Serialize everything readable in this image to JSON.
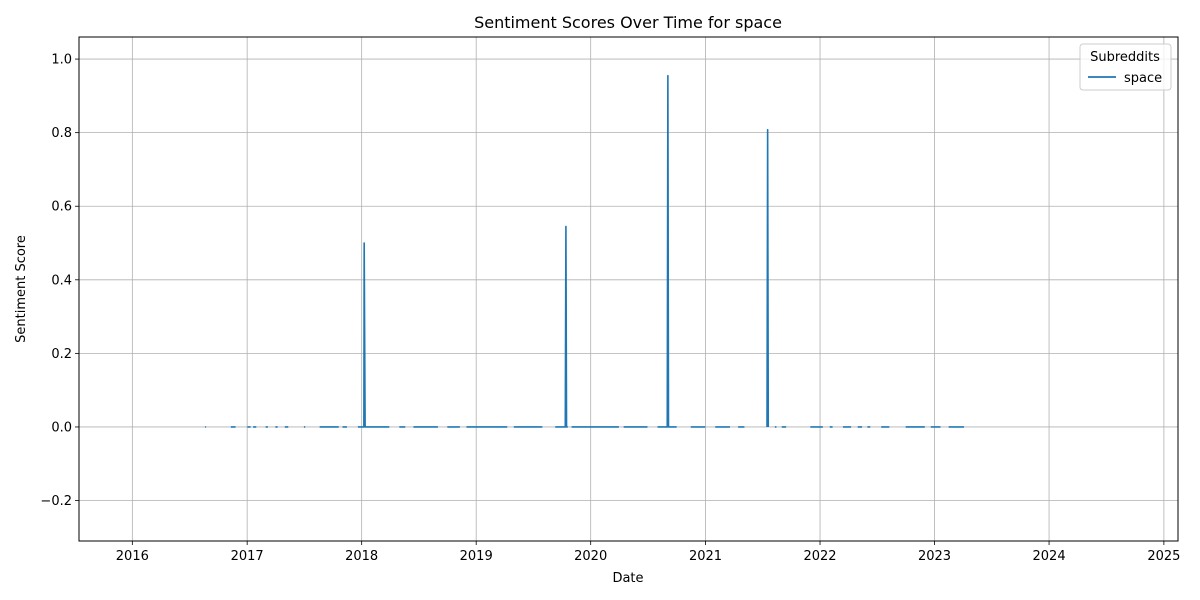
{
  "chart_data": {
    "type": "line",
    "title": "Sentiment Scores Over Time for space",
    "xlabel": "Date",
    "ylabel": "Sentiment Score",
    "xlim": [
      "2015-07-15",
      "2025-02-15"
    ],
    "ylim": [
      -0.31,
      1.06
    ],
    "x_ticks": [
      "2016",
      "2017",
      "2018",
      "2019",
      "2020",
      "2021",
      "2022",
      "2023",
      "2024",
      "2025"
    ],
    "y_ticks": [
      -0.2,
      0.0,
      0.2,
      0.4,
      0.6,
      0.8,
      1.0
    ],
    "y_tick_labels": [
      "−0.2",
      "0.0",
      "0.2",
      "0.4",
      "0.6",
      "0.8",
      "1.0"
    ],
    "grid": true,
    "legend": {
      "title": "Subreddits",
      "placement": "top-right"
    },
    "series": [
      {
        "name": "space",
        "color": "#1f77b4",
        "segments": [
          [
            [
              "2016-08-20",
              0.0
            ],
            [
              "2016-08-23",
              0.0
            ]
          ],
          [
            [
              "2016-11-10",
              0.0
            ],
            [
              "2016-11-25",
              0.0
            ]
          ],
          [
            [
              "2017-01-02",
              0.0
            ],
            [
              "2017-01-12",
              0.0
            ]
          ],
          [
            [
              "2017-01-20",
              0.0
            ],
            [
              "2017-01-30",
              0.0
            ]
          ],
          [
            [
              "2017-03-01",
              0.0
            ],
            [
              "2017-03-08",
              0.0
            ]
          ],
          [
            [
              "2017-04-01",
              0.0
            ],
            [
              "2017-04-08",
              0.0
            ]
          ],
          [
            [
              "2017-05-01",
              0.0
            ],
            [
              "2017-05-12",
              0.0
            ]
          ],
          [
            [
              "2017-07-01",
              0.0
            ],
            [
              "2017-07-05",
              0.0
            ]
          ],
          [
            [
              "2017-08-20",
              0.0
            ],
            [
              "2017-10-20",
              0.0
            ]
          ],
          [
            [
              "2017-11-01",
              0.0
            ],
            [
              "2017-11-15",
              0.0
            ]
          ],
          [
            [
              "2017-12-20",
              0.0
            ],
            [
              "2018-01-08",
              0.0
            ],
            [
              "2018-01-09",
              0.5
            ],
            [
              "2018-01-12",
              0.0
            ],
            [
              "2018-03-30",
              0.0
            ]
          ],
          [
            [
              "2018-05-01",
              0.0
            ],
            [
              "2018-05-20",
              0.0
            ]
          ],
          [
            [
              "2018-06-15",
              0.0
            ],
            [
              "2018-09-01",
              0.0
            ]
          ],
          [
            [
              "2018-10-01",
              0.0
            ],
            [
              "2018-11-10",
              0.0
            ]
          ],
          [
            [
              "2018-12-01",
              0.0
            ],
            [
              "2019-04-10",
              0.0
            ]
          ],
          [
            [
              "2019-05-01",
              0.0
            ],
            [
              "2019-07-31",
              0.0
            ]
          ],
          [
            [
              "2019-09-10",
              0.0
            ],
            [
              "2019-10-12",
              0.0
            ],
            [
              "2019-10-14",
              0.545
            ],
            [
              "2019-10-16",
              0.0
            ],
            [
              "2019-10-20",
              0.0
            ]
          ],
          [
            [
              "2019-11-01",
              0.0
            ],
            [
              "2020-03-31",
              0.0
            ]
          ],
          [
            [
              "2020-04-15",
              0.0
            ],
            [
              "2020-06-30",
              0.0
            ]
          ],
          [
            [
              "2020-08-01",
              0.0
            ],
            [
              "2020-09-01",
              0.0
            ],
            [
              "2020-09-03",
              0.955
            ],
            [
              "2020-09-05",
              0.0
            ],
            [
              "2020-10-01",
              0.0
            ]
          ],
          [
            [
              "2020-11-15",
              0.0
            ],
            [
              "2020-12-31",
              0.0
            ]
          ],
          [
            [
              "2021-02-01",
              0.0
            ],
            [
              "2021-03-20",
              0.0
            ]
          ],
          [
            [
              "2021-04-15",
              0.0
            ],
            [
              "2021-05-05",
              0.0
            ]
          ],
          [
            [
              "2021-07-16",
              0.0
            ],
            [
              "2021-07-18",
              0.808
            ],
            [
              "2021-07-20",
              0.0
            ]
          ],
          [
            [
              "2021-08-10",
              0.0
            ],
            [
              "2021-08-15",
              0.0
            ]
          ],
          [
            [
              "2021-09-01",
              0.0
            ],
            [
              "2021-09-15",
              0.0
            ]
          ],
          [
            [
              "2021-12-01",
              0.0
            ],
            [
              "2022-01-10",
              0.0
            ]
          ],
          [
            [
              "2022-02-01",
              0.0
            ],
            [
              "2022-02-10",
              0.0
            ]
          ],
          [
            [
              "2022-03-15",
              0.0
            ],
            [
              "2022-04-10",
              0.0
            ]
          ],
          [
            [
              "2022-05-01",
              0.0
            ],
            [
              "2022-05-15",
              0.0
            ]
          ],
          [
            [
              "2022-06-01",
              0.0
            ],
            [
              "2022-06-10",
              0.0
            ]
          ],
          [
            [
              "2022-07-15",
              0.0
            ],
            [
              "2022-08-10",
              0.0
            ]
          ],
          [
            [
              "2022-10-01",
              0.0
            ],
            [
              "2022-12-01",
              0.0
            ]
          ],
          [
            [
              "2022-12-20",
              0.0
            ],
            [
              "2023-01-20",
              0.0
            ]
          ],
          [
            [
              "2023-02-15",
              0.0
            ],
            [
              "2023-04-05",
              0.0
            ]
          ]
        ]
      }
    ]
  }
}
